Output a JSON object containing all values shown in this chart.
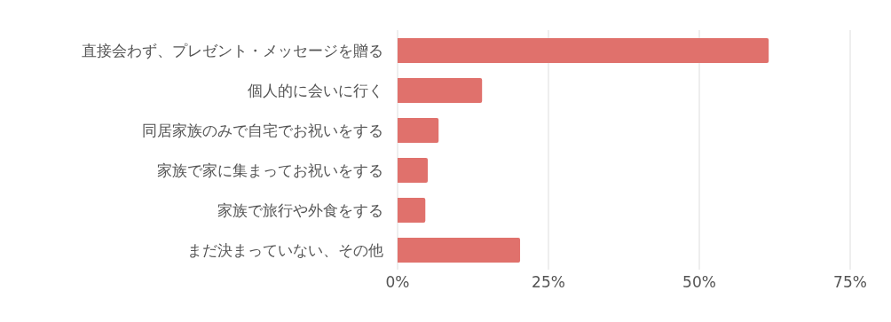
{
  "chart_data": {
    "type": "bar",
    "orientation": "horizontal",
    "categories": [
      "直接会わず、プレゼント・メッセージを贈る",
      "個人的に会いに行く",
      "同居家族のみで自宅でお祝いをする",
      "家族で家に集まってお祝いをする",
      "家族で旅行や外食をする",
      "まだ決まっていない、その他"
    ],
    "values": [
      61.5,
      14,
      6.8,
      5,
      4.6,
      20.3
    ],
    "color": "#e0716c",
    "xlim": [
      0,
      75
    ],
    "xticks": [
      {
        "value": 0,
        "label": "0%"
      },
      {
        "value": 25,
        "label": "25%"
      },
      {
        "value": 50,
        "label": "50%"
      },
      {
        "value": 75,
        "label": "75%"
      }
    ],
    "grid": "x"
  }
}
